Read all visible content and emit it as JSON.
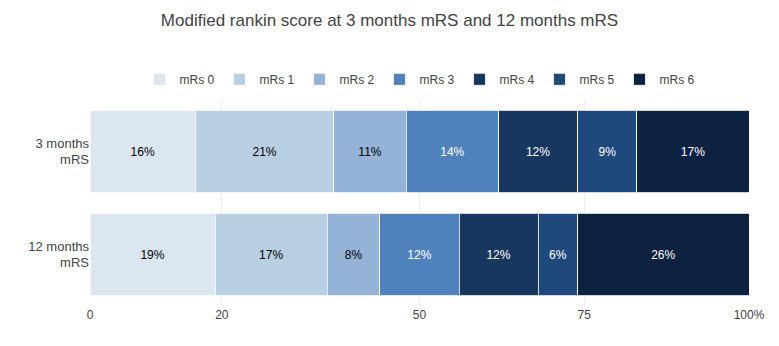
{
  "chart_data": {
    "type": "bar",
    "orientation": "horizontal",
    "stacked": true,
    "data_labels": true,
    "grid": true,
    "legend": "top",
    "title": "Modified rankin score at 3 months mRS and 12 months mRS",
    "categories": [
      "3 months\nmRS",
      "12 months\nmRS"
    ],
    "series": [
      {
        "name": "mRs 0",
        "color": "#dce6f1",
        "values": [
          16,
          19
        ],
        "value_labels": [
          "16%",
          "19%"
        ]
      },
      {
        "name": "mRs 1",
        "color": "#b8cfe4",
        "values": [
          21,
          17
        ],
        "value_labels": [
          "21%",
          "17%"
        ]
      },
      {
        "name": "mRs 2",
        "color": "#95b3d7",
        "values": [
          11,
          8
        ],
        "value_labels": [
          "11%",
          "8%"
        ]
      },
      {
        "name": "mRs 3",
        "color": "#4f81bd",
        "values": [
          14,
          12
        ],
        "value_labels": [
          "14%",
          "12%"
        ]
      },
      {
        "name": "mRs 4",
        "color": "#17375e",
        "values": [
          12,
          12
        ],
        "value_labels": [
          "12%",
          "12%"
        ]
      },
      {
        "name": "mRs 5",
        "color": "#1f497d",
        "values": [
          9,
          6
        ],
        "value_labels": [
          "9%",
          "6%"
        ]
      },
      {
        "name": "mRs 6",
        "color": "#0d2240",
        "values": [
          17,
          26
        ],
        "value_labels": [
          "17%",
          "26%"
        ]
      }
    ],
    "xlim": [
      0,
      100
    ],
    "xticks": [
      0,
      20,
      50,
      75,
      {
        "value": 100,
        "label": "100%"
      }
    ]
  }
}
